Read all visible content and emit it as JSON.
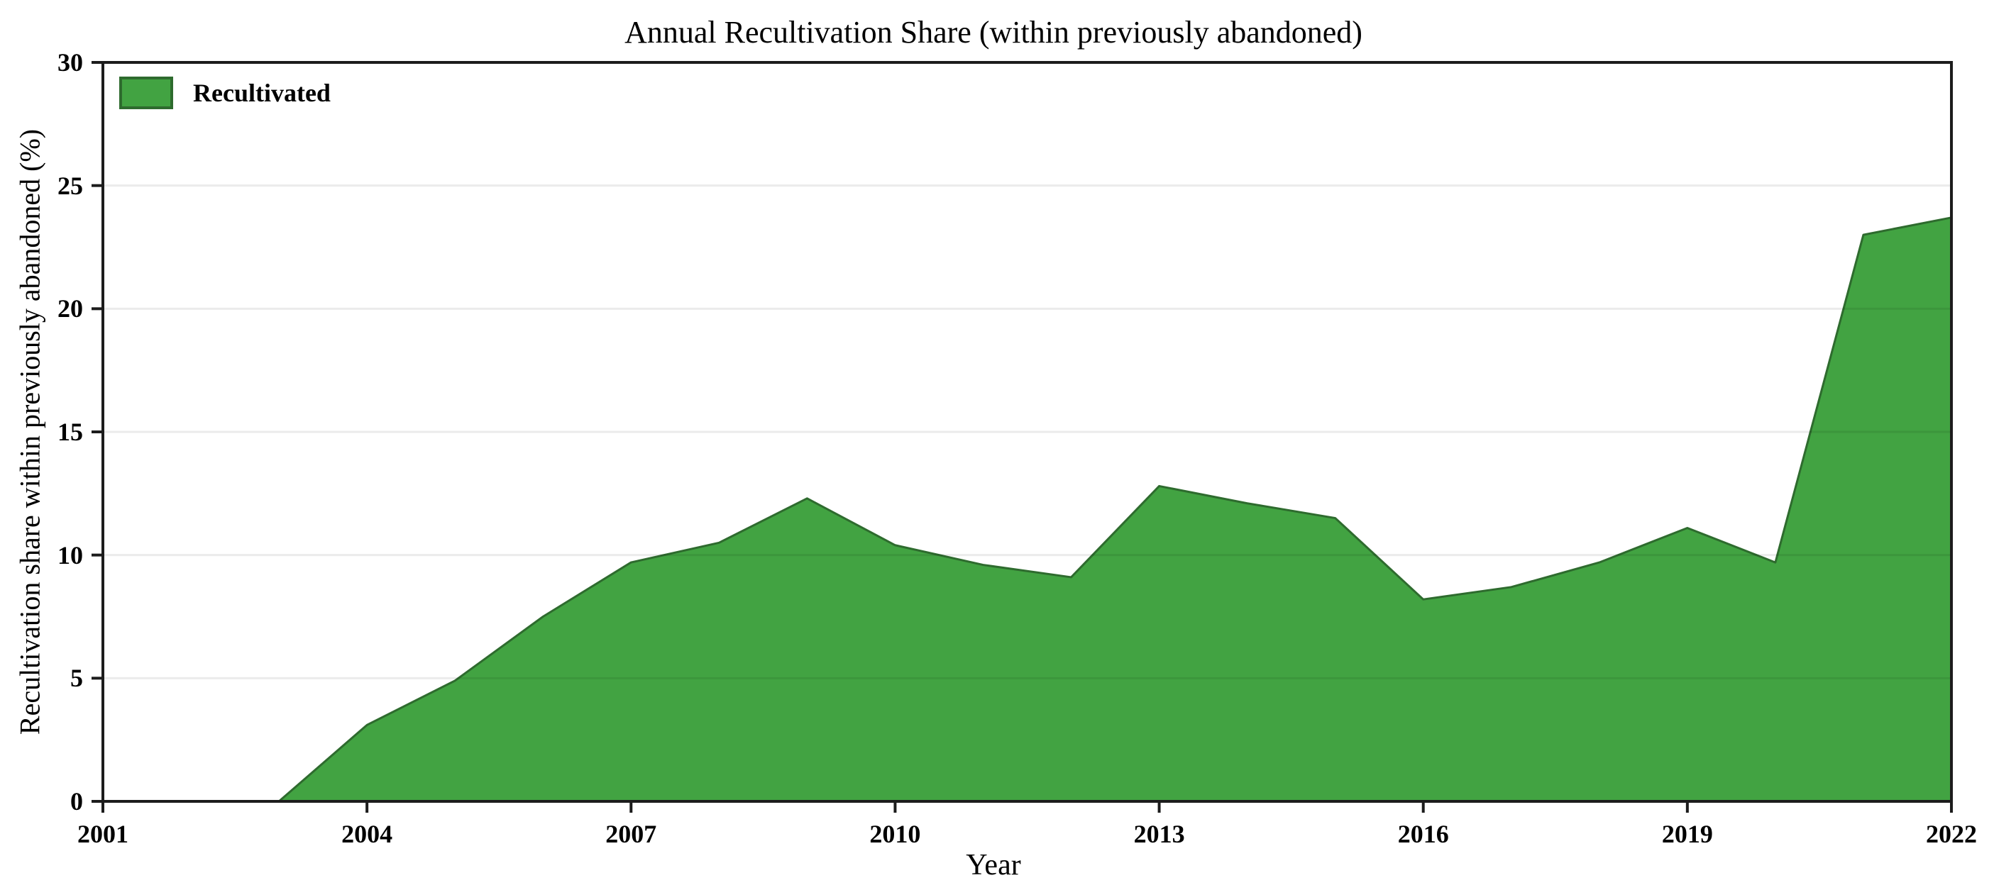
{
  "title": "Annual Recultivation Share (within previously abandoned)",
  "legend": {
    "label": "Recultivated"
  },
  "axes": {
    "x_label": "Year",
    "y_label": "Recultivation share within previously abandoned (%)"
  },
  "chart_data": {
    "type": "area",
    "title": "Annual Recultivation Share (within previously abandoned)",
    "xlabel": "Year",
    "ylabel": "Recultivation share within previously abandoned (%)",
    "series_name": "Recultivated",
    "x": [
      2001,
      2002,
      2003,
      2004,
      2005,
      2006,
      2007,
      2008,
      2009,
      2010,
      2011,
      2012,
      2013,
      2014,
      2015,
      2016,
      2017,
      2018,
      2019,
      2020,
      2021,
      2022
    ],
    "values": [
      0.0,
      0.0,
      0.0,
      3.1,
      4.9,
      7.5,
      9.7,
      10.5,
      12.3,
      10.4,
      9.6,
      9.1,
      12.8,
      12.1,
      11.5,
      8.2,
      8.7,
      9.7,
      11.1,
      9.7,
      23.0,
      23.7
    ],
    "xlim": [
      2001,
      2022
    ],
    "ylim": [
      0,
      30
    ],
    "x_ticks": [
      "2001",
      "2004",
      "2007",
      "2010",
      "2013",
      "2016",
      "2019",
      "2022"
    ],
    "x_tick_values": [
      2001,
      2004,
      2007,
      2010,
      2013,
      2016,
      2019,
      2022
    ],
    "y_ticks": [
      "0",
      "5",
      "10",
      "15",
      "20",
      "25",
      "30"
    ],
    "y_tick_values": [
      0,
      5,
      10,
      15,
      20,
      25,
      30
    ],
    "grid": "horizontal-only",
    "legend_position": "upper-left",
    "colors": {
      "fill": "#42a342",
      "edge": "#2e6b2e",
      "gridline": "rgba(0,0,0,0.08)",
      "spine": "#1c1c1c",
      "text": "#000000"
    }
  },
  "plot_geometry_note": "area chart, values are percent shares per year"
}
